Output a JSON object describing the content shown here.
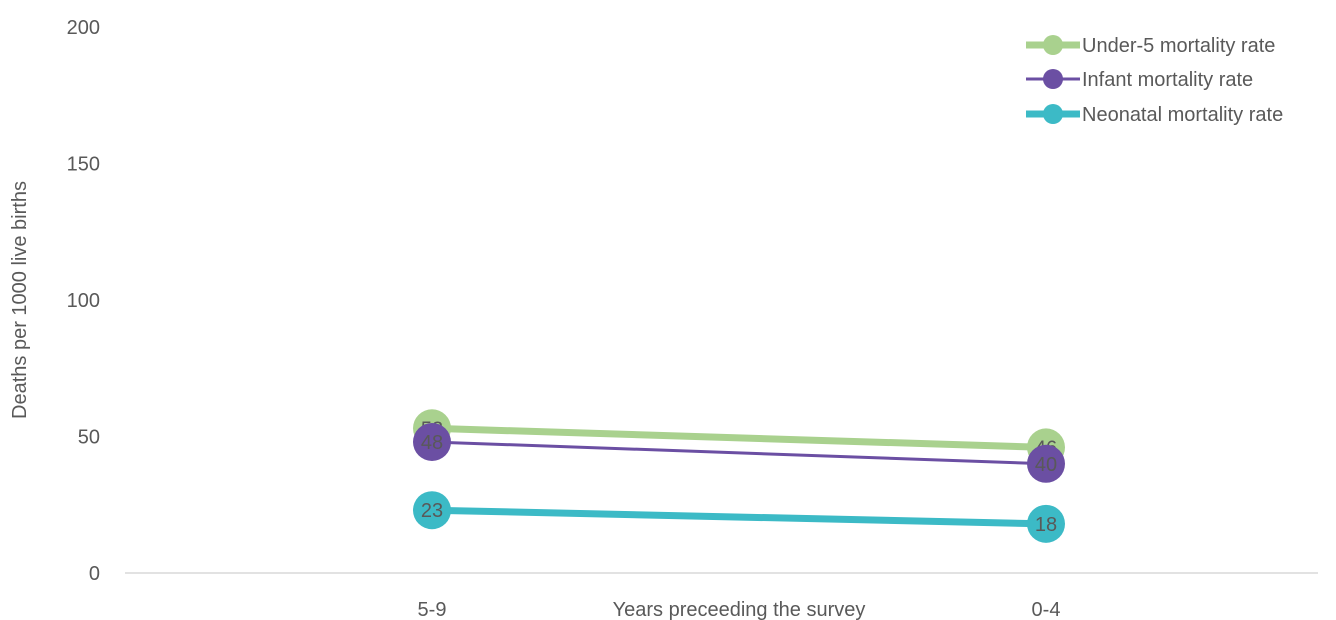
{
  "chart_data": {
    "type": "line",
    "title": "",
    "xlabel": "Years preceeding the survey",
    "ylabel": "Deaths per 1000 live births",
    "categories": [
      "5-9",
      "0-4"
    ],
    "ylim": [
      0,
      200
    ],
    "yticks": [
      0,
      50,
      100,
      150,
      200
    ],
    "grid": false,
    "legend_position": "top-right",
    "series": [
      {
        "name": "Under-5 mortality rate",
        "values": [
          53,
          46
        ],
        "labels": [
          "53",
          "46"
        ],
        "color": "#A9D18E"
      },
      {
        "name": "Infant mortality rate",
        "values": [
          48,
          40
        ],
        "labels": [
          "48",
          "40"
        ],
        "color": "#6B4FA3"
      },
      {
        "name": "Neonatal mortality rate",
        "values": [
          23,
          18
        ],
        "labels": [
          "23",
          "18"
        ],
        "color": "#3CBAC6"
      }
    ]
  }
}
